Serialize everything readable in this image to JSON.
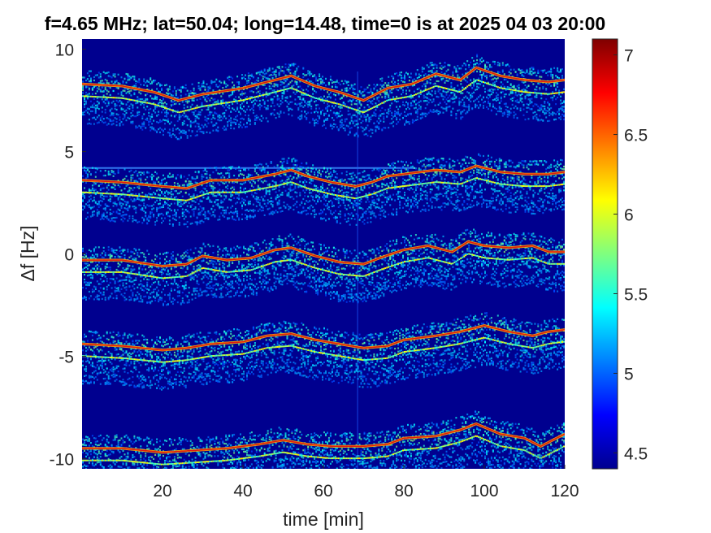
{
  "chart_data": {
    "type": "heatmap",
    "title": "f=4.65 MHz;  lat=50.04; long=14.48, time=0 is at 2025 04 03 20:00",
    "xlabel": "time [min]",
    "ylabel": "Δf [Hz]",
    "xlim": [
      0,
      120
    ],
    "ylim": [
      -10.5,
      10.5
    ],
    "xticks": [
      "20",
      "40",
      "60",
      "80",
      "100",
      "120"
    ],
    "yticks": [
      "10",
      "5",
      "0",
      "-5",
      "-10"
    ],
    "colorbar": {
      "ticks": [
        "7",
        "6.5",
        "6",
        "5.5",
        "5",
        "4.5"
      ],
      "range": [
        4.4,
        7.1
      ],
      "colormap": "jet"
    },
    "background_value": 4.5,
    "grid": false,
    "traces": [
      {
        "name": "",
        "points": [
          [
            0,
            8.3
          ],
          [
            10,
            8.2
          ],
          [
            18,
            7.9
          ],
          [
            24,
            7.5
          ],
          [
            30,
            7.8
          ],
          [
            40,
            8.1
          ],
          [
            46,
            8.4
          ],
          [
            52,
            8.7
          ],
          [
            58,
            8.2
          ],
          [
            64,
            7.9
          ],
          [
            70,
            7.5
          ],
          [
            76,
            8.1
          ],
          [
            82,
            8.3
          ],
          [
            88,
            8.8
          ],
          [
            94,
            8.5
          ],
          [
            98,
            9.1
          ],
          [
            104,
            8.7
          ],
          [
            110,
            8.5
          ],
          [
            116,
            8.4
          ],
          [
            120,
            8.5
          ]
        ]
      },
      {
        "name": "",
        "points": [
          [
            0,
            3.6
          ],
          [
            10,
            3.5
          ],
          [
            20,
            3.3
          ],
          [
            26,
            3.2
          ],
          [
            32,
            3.6
          ],
          [
            40,
            3.6
          ],
          [
            48,
            3.9
          ],
          [
            52,
            4.1
          ],
          [
            56,
            3.8
          ],
          [
            62,
            3.5
          ],
          [
            68,
            3.3
          ],
          [
            72,
            3.5
          ],
          [
            76,
            3.8
          ],
          [
            80,
            3.9
          ],
          [
            88,
            4.1
          ],
          [
            94,
            4.0
          ],
          [
            98,
            4.3
          ],
          [
            104,
            4.0
          ],
          [
            110,
            3.9
          ],
          [
            116,
            3.9
          ],
          [
            120,
            4.0
          ]
        ]
      },
      {
        "name": "",
        "points": [
          [
            0,
            -0.3
          ],
          [
            10,
            -0.3
          ],
          [
            20,
            -0.6
          ],
          [
            26,
            -0.5
          ],
          [
            30,
            -0.1
          ],
          [
            36,
            -0.3
          ],
          [
            42,
            -0.2
          ],
          [
            48,
            0.2
          ],
          [
            52,
            0.3
          ],
          [
            58,
            -0.1
          ],
          [
            64,
            -0.4
          ],
          [
            70,
            -0.5
          ],
          [
            74,
            -0.2
          ],
          [
            80,
            0.2
          ],
          [
            86,
            0.4
          ],
          [
            92,
            0.1
          ],
          [
            96,
            0.6
          ],
          [
            100,
            0.4
          ],
          [
            106,
            0.3
          ],
          [
            112,
            0.4
          ],
          [
            116,
            0.1
          ],
          [
            120,
            0.1
          ]
        ]
      },
      {
        "name": "",
        "points": [
          [
            0,
            -4.4
          ],
          [
            10,
            -4.5
          ],
          [
            20,
            -4.7
          ],
          [
            26,
            -4.6
          ],
          [
            32,
            -4.4
          ],
          [
            40,
            -4.3
          ],
          [
            46,
            -4.0
          ],
          [
            52,
            -3.9
          ],
          [
            58,
            -4.2
          ],
          [
            64,
            -4.4
          ],
          [
            70,
            -4.6
          ],
          [
            76,
            -4.5
          ],
          [
            80,
            -4.2
          ],
          [
            88,
            -4.0
          ],
          [
            94,
            -3.8
          ],
          [
            100,
            -3.5
          ],
          [
            106,
            -3.8
          ],
          [
            112,
            -4.0
          ],
          [
            116,
            -3.8
          ],
          [
            120,
            -3.7
          ]
        ]
      },
      {
        "name": "",
        "points": [
          [
            0,
            -9.5
          ],
          [
            10,
            -9.5
          ],
          [
            20,
            -9.7
          ],
          [
            28,
            -9.6
          ],
          [
            36,
            -9.5
          ],
          [
            44,
            -9.3
          ],
          [
            50,
            -9.1
          ],
          [
            56,
            -9.3
          ],
          [
            62,
            -9.4
          ],
          [
            70,
            -9.4
          ],
          [
            76,
            -9.3
          ],
          [
            80,
            -9.0
          ],
          [
            88,
            -8.9
          ],
          [
            94,
            -8.6
          ],
          [
            98,
            -8.3
          ],
          [
            104,
            -8.8
          ],
          [
            110,
            -9.0
          ],
          [
            114,
            -9.4
          ],
          [
            120,
            -8.8
          ]
        ]
      }
    ],
    "artifacts": {
      "horizontal_line_y": 4.2,
      "vertical_line_x": 68.5
    }
  }
}
